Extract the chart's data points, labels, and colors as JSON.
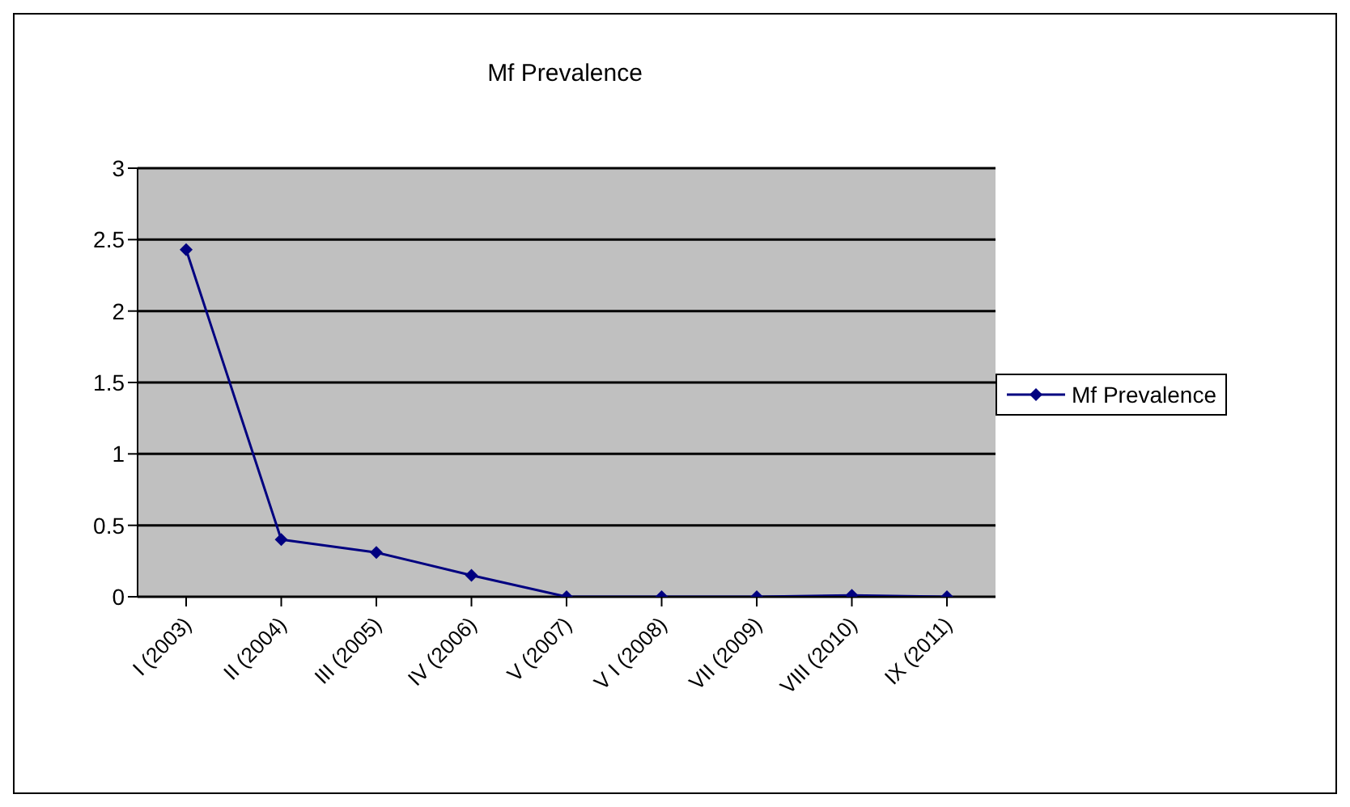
{
  "chart_data": {
    "type": "line",
    "title": "Mf Prevalence",
    "categories": [
      "I (2003)",
      "II (2004)",
      "III (2005)",
      "IV (2006)",
      "V (2007)",
      "V I (2008)",
      "VII (2009)",
      "VIII (2010)",
      "IX (2011)"
    ],
    "series": [
      {
        "name": "Mf Prevalence",
        "color": "#000080",
        "values": [
          2.43,
          0.4,
          0.31,
          0.15,
          0,
          0,
          0,
          0.01,
          0
        ]
      }
    ],
    "ylim": [
      0,
      3
    ],
    "yticks": [
      0,
      0.5,
      1,
      1.5,
      2,
      2.5,
      3
    ],
    "grid": "y",
    "legend": "right",
    "marker": "diamond"
  }
}
